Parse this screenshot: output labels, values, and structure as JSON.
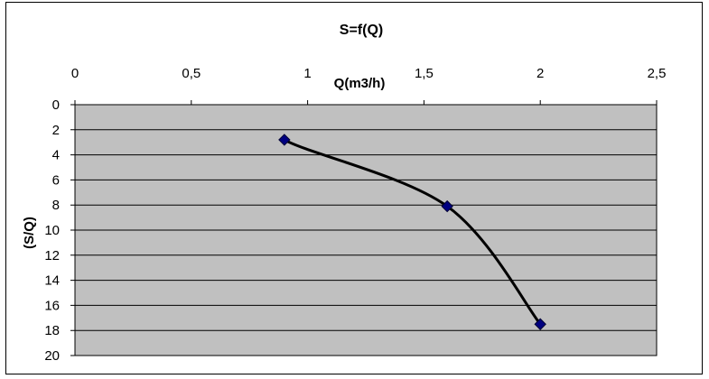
{
  "chart_data": {
    "type": "scatter",
    "title": "S=f(Q)",
    "xlabel": "Q(m3/h)",
    "ylabel": "(S/Q)",
    "x_ticks": [
      "0",
      "0,5",
      "1",
      "1,5",
      "2",
      "2,5"
    ],
    "y_ticks": [
      "0",
      "2",
      "4",
      "6",
      "8",
      "10",
      "12",
      "14",
      "16",
      "18",
      "20"
    ],
    "xlim": [
      0,
      2.5
    ],
    "ylim": [
      0,
      20
    ],
    "y_inverted": true,
    "x_axis_position": "top",
    "grid": "horizontal",
    "legend": "none",
    "series": [
      {
        "x": [
          0.9,
          1.6,
          2.0
        ],
        "y": [
          2.8,
          8.1,
          17.5
        ],
        "trendline": "smooth"
      }
    ],
    "colors": {
      "plot_background": "#c0c0c0",
      "marker": "#000080",
      "line": "#000000",
      "gridline": "#000000"
    }
  }
}
